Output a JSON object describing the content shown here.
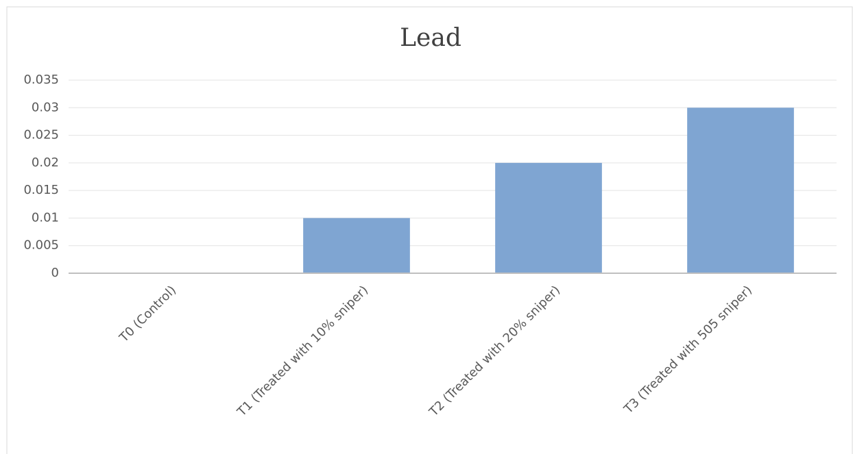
{
  "chart_data": {
    "type": "bar",
    "title": "Lead",
    "categories": [
      "T0 (Control)",
      "T1 (Treated with 10% sniper)",
      "T2 (Treated with 20% sniper)",
      "T3 (Treated with 505 sniper)"
    ],
    "values": [
      0,
      0.01,
      0.02,
      0.03
    ],
    "color": "#7fa5d2",
    "ylim": [
      0,
      0.035
    ],
    "yticks": [
      0,
      0.005,
      0.01,
      0.015,
      0.02,
      0.025,
      0.03,
      0.035
    ],
    "grid": true
  }
}
